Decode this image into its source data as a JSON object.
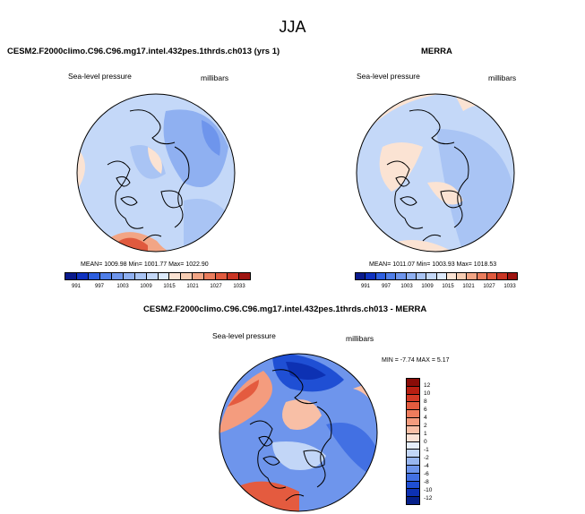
{
  "page": {
    "season": "JJA"
  },
  "colors": {
    "deep_blue": "#0a2fa8",
    "blue": "#2d5fe0",
    "mid_blue": "#6e95ec",
    "light_blue": "#a9c4f4",
    "pale_blue": "#d6e6fb",
    "pale_orange": "#f7d6c2",
    "light_red": "#f2a585",
    "red": "#e05a3e",
    "dark_red": "#b81f12"
  },
  "panel_model": {
    "title": "CESM2.F2000climo.C96.C96.mg17.intel.432pes.1thrds.ch013 (yrs 1)",
    "variable": "Sea-level pressure",
    "units": "millibars",
    "stats": "MEAN= 1009.98   Min= 1001.77   Max= 1022.90"
  },
  "panel_obs": {
    "title": "MERRA",
    "variable": "Sea-level pressure",
    "units": "millibars",
    "stats": "MEAN= 1011.07   Min= 1003.93   Max= 1018.53"
  },
  "panel_diff": {
    "title": "CESM2.F2000climo.C96.C96.mg17.intel.432pes.1thrds.ch013 - MERRA",
    "variable": "Sea-level pressure",
    "units": "millibars",
    "stats": "MIN =  -7.74  MAX =   5.17"
  },
  "chart_data": [
    {
      "type": "heatmap",
      "title": "CESM2.F2000climo.C96.C96.mg17.intel.432pes.1thrds.ch013 (yrs 1)",
      "projection": "north polar stereographic",
      "variable": "Sea-level pressure",
      "units": "millibars",
      "mean": 1009.98,
      "min": 1001.77,
      "max": 1022.9,
      "colorbar_ticks": [
        "991",
        "997",
        "1003",
        "1009",
        "1015",
        "1021",
        "1027",
        "1033"
      ],
      "colorbar_colors": [
        "#0a1a8c",
        "#0f32c0",
        "#2d5fe0",
        "#4f7ee8",
        "#6e95ec",
        "#8fb0f1",
        "#a9c4f4",
        "#c4d8f8",
        "#dce9fb",
        "#fbe3d3",
        "#f7cdb3",
        "#f2a585",
        "#ea7d5d",
        "#e05a3e",
        "#c93524",
        "#9e1410"
      ]
    },
    {
      "type": "heatmap",
      "title": "MERRA",
      "projection": "north polar stereographic",
      "variable": "Sea-level pressure",
      "units": "millibars",
      "mean": 1011.07,
      "min": 1003.93,
      "max": 1018.53,
      "colorbar_ticks": [
        "991",
        "997",
        "1003",
        "1009",
        "1015",
        "1021",
        "1027",
        "1033"
      ],
      "colorbar_colors": [
        "#0a1a8c",
        "#0f32c0",
        "#2d5fe0",
        "#4f7ee8",
        "#6e95ec",
        "#8fb0f1",
        "#a9c4f4",
        "#c4d8f8",
        "#dce9fb",
        "#fbe3d3",
        "#f7cdb3",
        "#f2a585",
        "#ea7d5d",
        "#e05a3e",
        "#c93524",
        "#9e1410"
      ]
    },
    {
      "type": "heatmap",
      "title": "CESM2.F2000climo.C96.C96.mg17.intel.432pes.1thrds.ch013 - MERRA",
      "projection": "north polar stereographic",
      "variable": "Sea-level pressure",
      "units": "millibars",
      "min": -7.74,
      "max": 5.17,
      "colorbar_ticks": [
        "12",
        "10",
        "8",
        "6",
        "4",
        "2",
        "1",
        "0",
        "-1",
        "-2",
        "-4",
        "-6",
        "-8",
        "-10",
        "-12"
      ],
      "colorbar_colors": [
        "#8a0c08",
        "#b81f12",
        "#d33a26",
        "#e45b3f",
        "#ee7c5c",
        "#f49c7e",
        "#f8bfa6",
        "#fbe2d5",
        "#e6effc",
        "#c2d6f7",
        "#98b6f0",
        "#6e95ec",
        "#4270e3",
        "#1f4fd4",
        "#0d31b3",
        "#06208a"
      ]
    }
  ]
}
